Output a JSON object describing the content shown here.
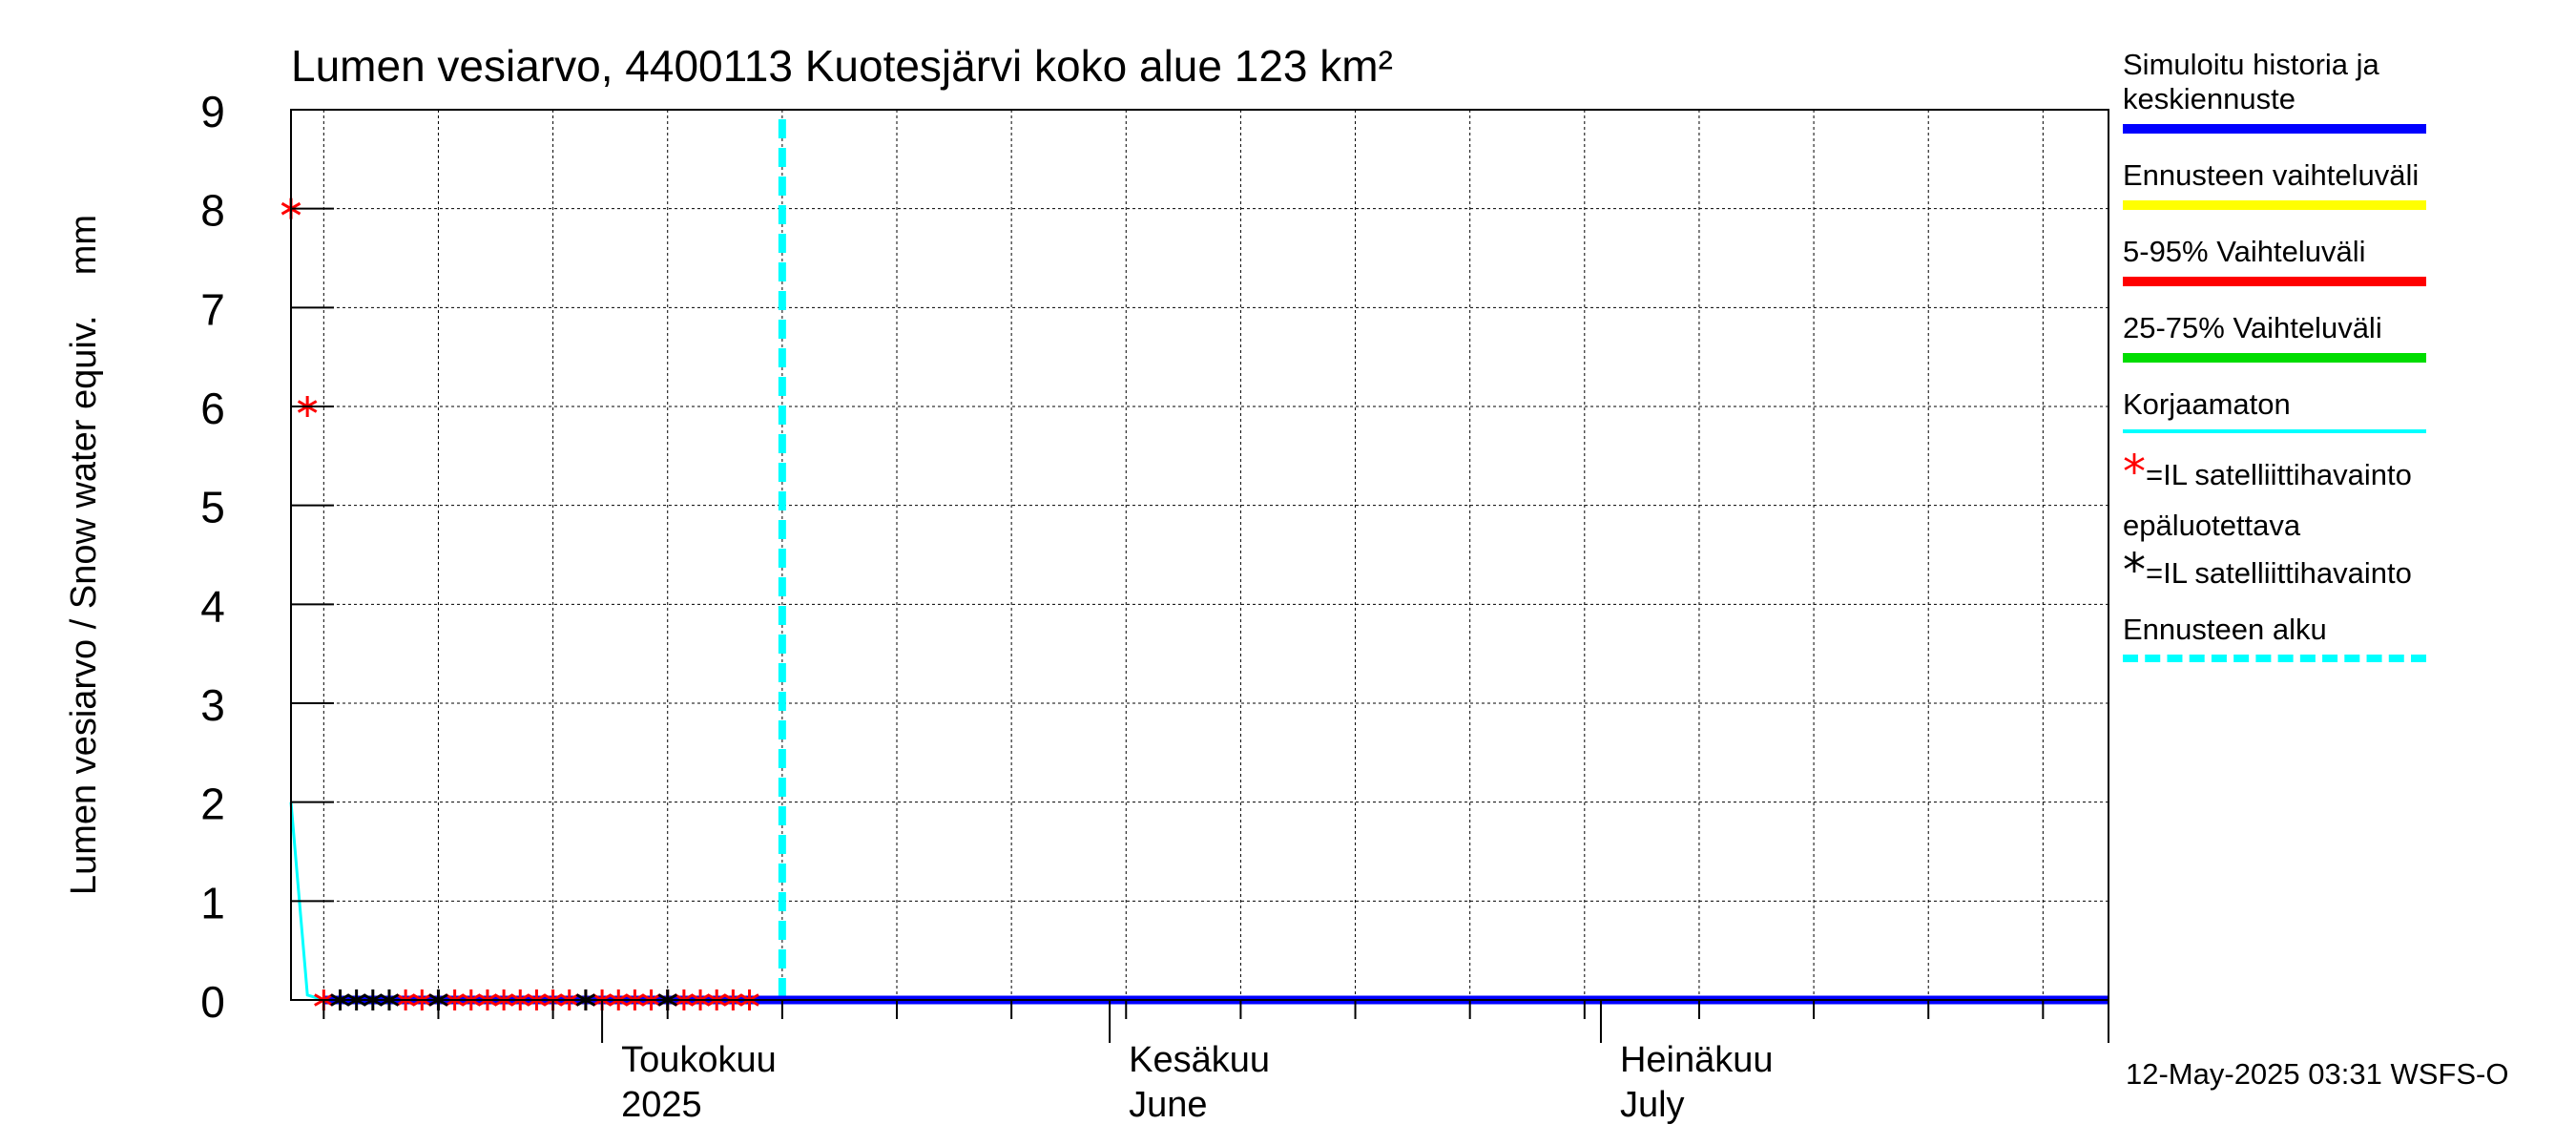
{
  "chart_data": {
    "type": "line",
    "title": "Lumen vesiarvo, 4400113 Kuotesjärvi koko alue 123 km²",
    "ylabel": "Lumen vesiarvo / Snow water equiv.    mm",
    "ylim": [
      0,
      9
    ],
    "yticks": [
      "0",
      "1",
      "2",
      "3",
      "4",
      "5",
      "6",
      "7",
      "8",
      "9"
    ],
    "xlim": [
      "2025-04-12",
      "2025-08-01"
    ],
    "month_labels": [
      {
        "line1": "Toukokuu",
        "line2": "2025",
        "date": "2025-05-01"
      },
      {
        "line1": "Kesäkuu",
        "line2": "June",
        "date": "2025-06-01"
      },
      {
        "line1": "Heinäkuu",
        "line2": "July",
        "date": "2025-07-01"
      }
    ],
    "month_starts": [
      "2025-05-01",
      "2025-06-01",
      "2025-07-01",
      "2025-08-01"
    ],
    "forecast_start": "2025-05-12",
    "grid": true,
    "series": [
      {
        "name": "Korjaamaton",
        "color": "#00ffff",
        "x": [
          "2025-04-12",
          "2025-04-13",
          "2025-04-14",
          "2025-05-12",
          "2025-08-01"
        ],
        "y": [
          2,
          0.05,
          0,
          0,
          0
        ]
      },
      {
        "name": "Simuloitu historia ja keskiennuste",
        "color": "#0000ff",
        "x": [
          "2025-04-14",
          "2025-05-12",
          "2025-08-01"
        ],
        "y": [
          0,
          0,
          0
        ]
      }
    ],
    "satellite_unreliable": {
      "color": "#ff0000",
      "x": [
        "2025-04-12",
        "2025-04-13",
        "2025-04-14",
        "2025-04-19",
        "2025-04-20",
        "2025-04-21",
        "2025-04-22",
        "2025-04-23",
        "2025-04-24",
        "2025-04-25",
        "2025-04-26",
        "2025-04-27",
        "2025-04-28",
        "2025-04-29",
        "2025-04-30",
        "2025-05-01",
        "2025-05-02",
        "2025-05-03",
        "2025-05-04",
        "2025-05-05",
        "2025-05-06",
        "2025-05-07",
        "2025-05-08",
        "2025-05-09",
        "2025-05-10"
      ],
      "y": [
        8,
        6,
        0,
        0,
        0,
        0,
        0,
        0,
        0,
        0,
        0,
        0,
        0,
        0,
        0,
        0,
        0,
        0,
        0,
        0,
        0,
        0,
        0,
        0,
        0
      ]
    },
    "satellite": {
      "color": "#000000",
      "x": [
        "2025-04-15",
        "2025-04-16",
        "2025-04-17",
        "2025-04-18",
        "2025-04-21",
        "2025-04-30",
        "2025-05-05"
      ],
      "y": [
        0,
        0,
        0,
        0,
        0,
        0,
        0
      ]
    }
  },
  "legend": {
    "sim_line1": "Simuloitu historia ja",
    "sim_line2": "keskiennuste",
    "range": "Ennusteen vaihteluväli",
    "p5_95": "5-95% Vaihteluväli",
    "p25_75": "25-75% Vaihteluväli",
    "uncorrected": "Korjaamaton",
    "sat_unreliable_line1": "=IL satelliittihavainto",
    "sat_unreliable_line2": "epäluotettava",
    "sat": "=IL satelliittihavainto",
    "forecast_start": "Ennusteen alku",
    "star_glyph": "*",
    "colors": {
      "sim": "#0000ff",
      "range": "#ffff00",
      "p5_95": "#ff0000",
      "p25_75": "#00dd00",
      "uncorrected": "#00ffff",
      "forecast_start": "#00ffff"
    }
  },
  "footer": {
    "timestamp": "12-May-2025 03:31 WSFS-O"
  }
}
